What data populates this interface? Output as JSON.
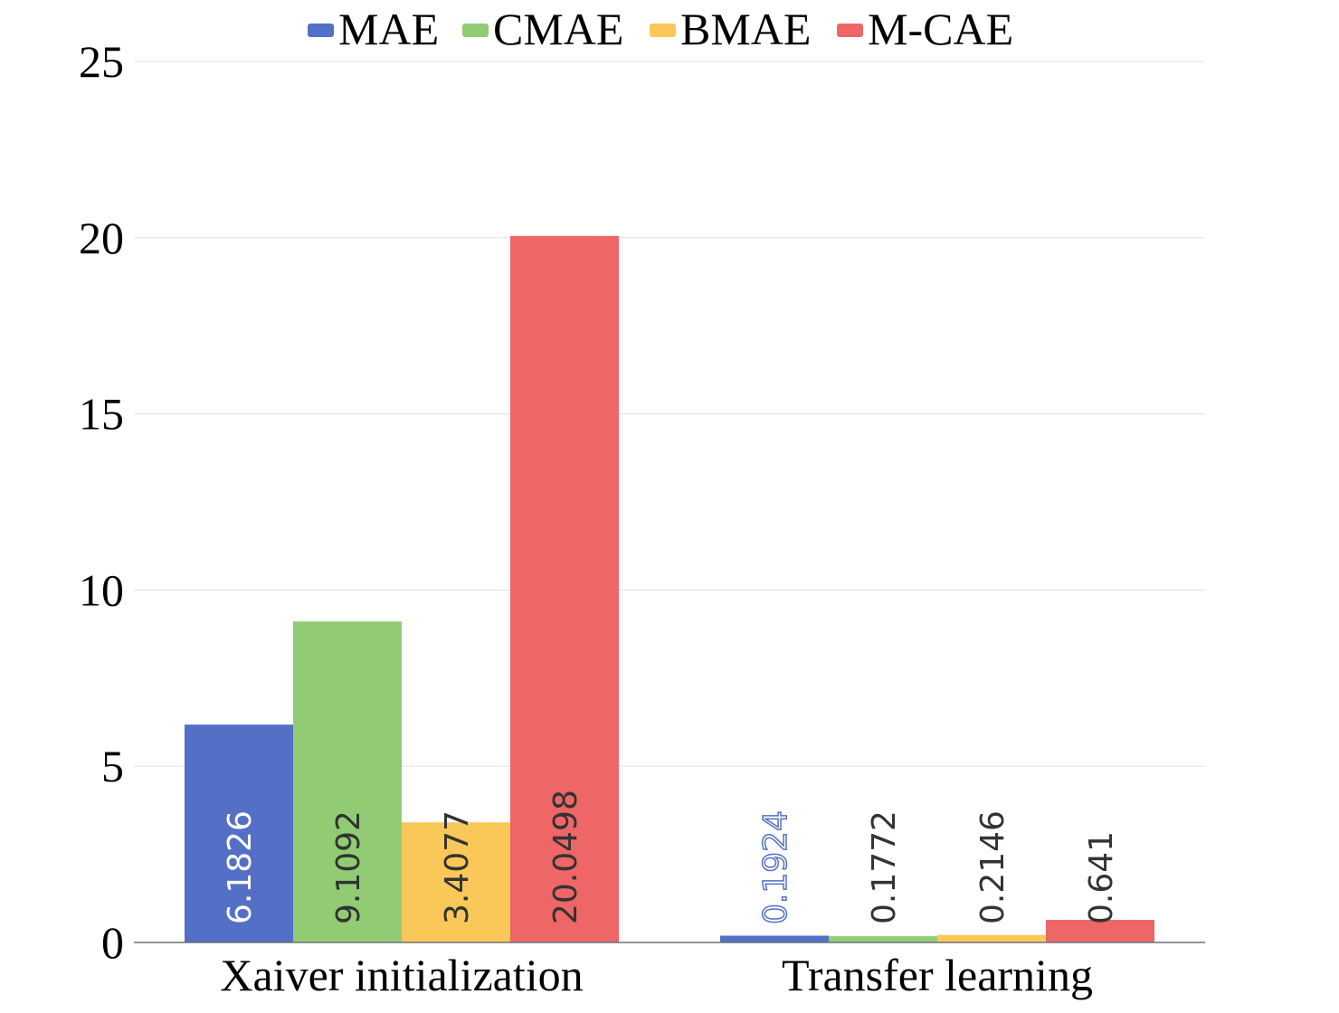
{
  "chart_data": {
    "type": "bar",
    "categories": [
      "Xaiver initialization",
      "Transfer learning"
    ],
    "series": [
      {
        "name": "MAE",
        "color": "#5470c6",
        "values": [
          6.1826,
          0.1924
        ],
        "labels": [
          "6.1826",
          "0.1924"
        ]
      },
      {
        "name": "CMAE",
        "color": "#91cc75",
        "values": [
          9.1092,
          0.1772
        ],
        "labels": [
          "9.1092",
          "0.1772"
        ]
      },
      {
        "name": "BMAE",
        "color": "#fac858",
        "values": [
          3.4077,
          0.2146
        ],
        "labels": [
          "3.4077",
          "0.2146"
        ]
      },
      {
        "name": "M-CAE",
        "color": "#ee6666",
        "values": [
          20.0498,
          0.641
        ],
        "labels": [
          "20.0498",
          "0.641"
        ]
      }
    ],
    "yticks": [
      "0",
      "5",
      "10",
      "15",
      "20",
      "25"
    ],
    "ylim": [
      0,
      25
    ],
    "grid": true,
    "legend_position": "top-center"
  }
}
